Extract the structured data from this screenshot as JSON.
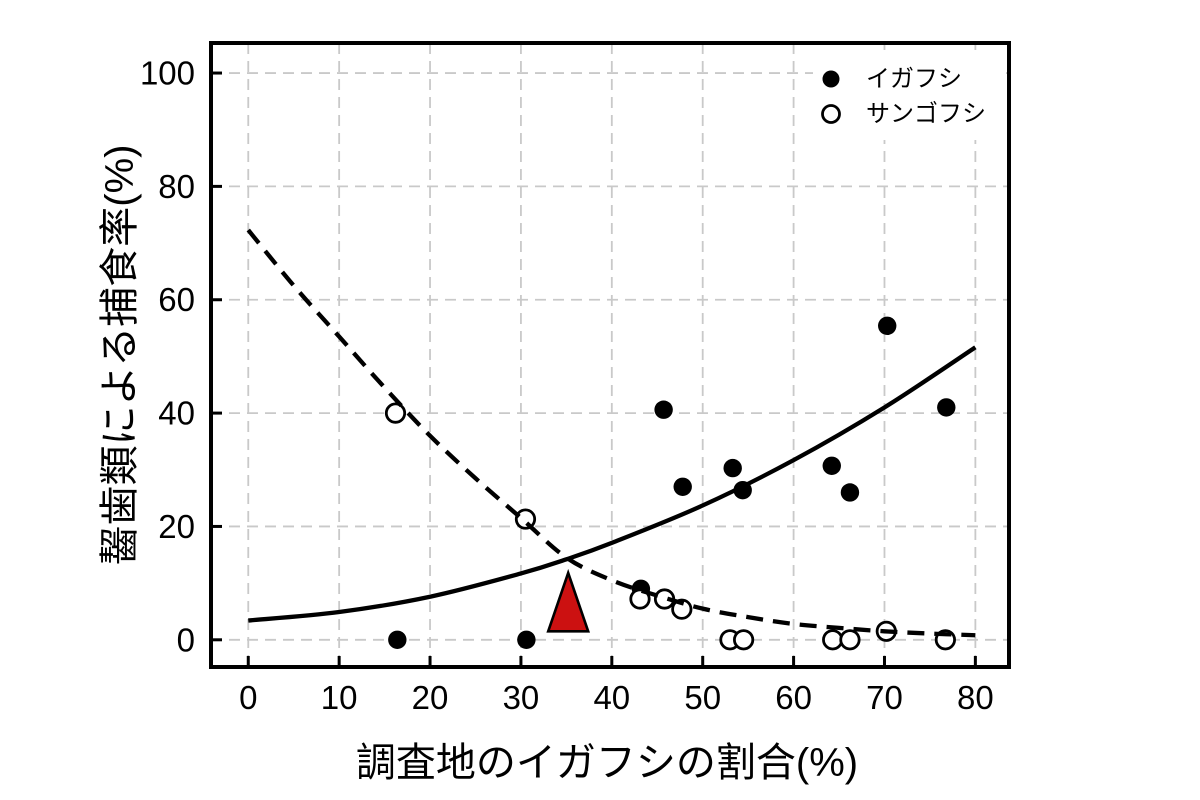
{
  "figure": {
    "background": "#ffffff",
    "frame_color": "#000000",
    "grid_color": "#c9c9c9",
    "accent_red": "#cc1111"
  },
  "chart_data": {
    "type": "scatter",
    "title": "",
    "xlabel": "調査地のイガフシの割合(%)",
    "ylabel": "齧歯類による捕食率(%)",
    "xlim": [
      -4.1,
      83.7
    ],
    "ylim": [
      -4.8,
      105.3
    ],
    "xticks": [
      0,
      10,
      20,
      30,
      40,
      50,
      60,
      70,
      80
    ],
    "yticks": [
      0,
      20,
      40,
      60,
      80,
      100
    ],
    "grid": "dashed",
    "legend_position": "top-right-inside",
    "series": [
      {
        "name": "イガフシ",
        "marker": "filled-circle",
        "color": "#000000",
        "points": [
          [
            16.4,
            0
          ],
          [
            30.6,
            0
          ],
          [
            43.2,
            9.0
          ],
          [
            45.7,
            40.6
          ],
          [
            47.8,
            27.0
          ],
          [
            53.3,
            30.3
          ],
          [
            54.4,
            26.4
          ],
          [
            64.2,
            30.7
          ],
          [
            66.2,
            26.0
          ],
          [
            70.3,
            55.4
          ],
          [
            76.8,
            41.0
          ]
        ]
      },
      {
        "name": "サンゴフシ",
        "marker": "open-circle",
        "color": "#000000",
        "points": [
          [
            16.2,
            40.0
          ],
          [
            30.5,
            21.3
          ],
          [
            43.1,
            7.2
          ],
          [
            45.8,
            7.2
          ],
          [
            47.7,
            5.4
          ],
          [
            53.0,
            0
          ],
          [
            54.5,
            0
          ],
          [
            64.3,
            0
          ],
          [
            66.2,
            0
          ],
          [
            70.2,
            1.5
          ],
          [
            76.7,
            0
          ]
        ]
      }
    ],
    "curves": [
      {
        "name": "igafushi-trend",
        "style": "solid",
        "points": [
          [
            0,
            3.4
          ],
          [
            10,
            4.9
          ],
          [
            20,
            7.6
          ],
          [
            30,
            11.7
          ],
          [
            35,
            14.2
          ],
          [
            40,
            17.1
          ],
          [
            50,
            23.7
          ],
          [
            60,
            31.7
          ],
          [
            70,
            41.0
          ],
          [
            80,
            51.6
          ]
        ]
      },
      {
        "name": "sangofushi-trend",
        "style": "dashed",
        "points": [
          [
            0,
            72.3
          ],
          [
            5,
            62.5
          ],
          [
            10,
            53.5
          ],
          [
            15,
            44.5
          ],
          [
            20,
            36.0
          ],
          [
            25,
            28.5
          ],
          [
            30,
            21.5
          ],
          [
            35,
            14.5
          ],
          [
            40,
            10.5
          ],
          [
            45,
            7.8
          ],
          [
            50,
            5.5
          ],
          [
            55,
            4.0
          ],
          [
            60,
            2.8
          ],
          [
            65,
            2.1
          ],
          [
            70,
            1.5
          ],
          [
            75,
            1.1
          ],
          [
            80,
            0.8
          ]
        ]
      }
    ],
    "annotation_marker": {
      "shape": "triangle",
      "x": 35.2,
      "y_base": 1.5,
      "y_apex": 11.8,
      "half_width": 2.2,
      "fill": "#cc1111",
      "stroke": "#000000"
    }
  }
}
